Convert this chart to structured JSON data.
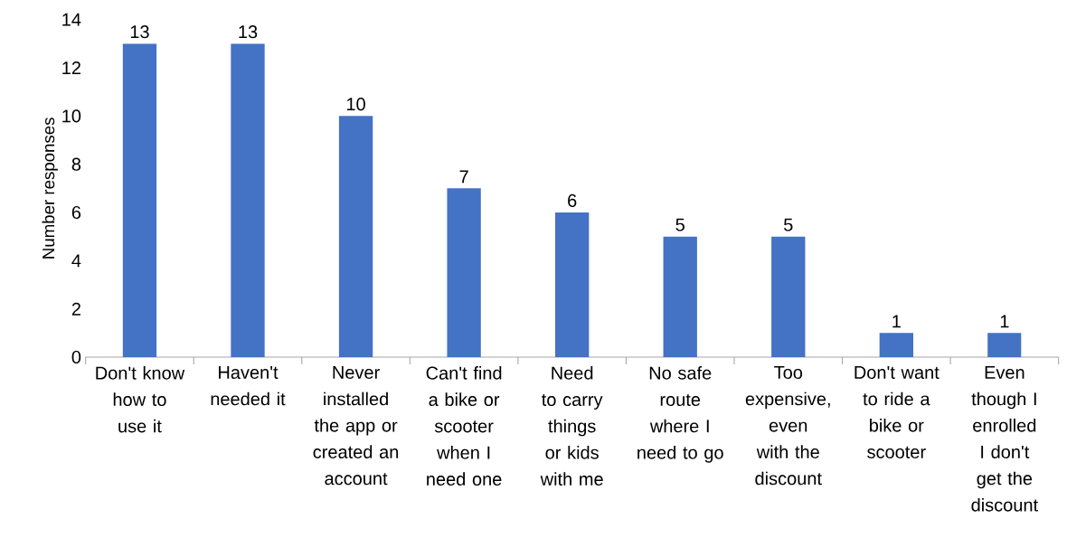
{
  "chart_data": {
    "type": "bar",
    "ylabel": "Number responses",
    "categories": [
      "Don't know how to use it",
      "Haven't needed it",
      "Never installed the app or created an account",
      "Can't find a bike or scooter when I need one",
      "Need to carry things or kids with me",
      "No safe route where I need to go",
      "Too expensive, even with the discount",
      "Don't want to ride a bike or scooter",
      "Even though I enrolled I don't get the discount"
    ],
    "values": [
      13,
      13,
      10,
      7,
      6,
      5,
      5,
      1,
      1
    ],
    "color": "#4472c4",
    "ylim": [
      0,
      14
    ],
    "yticks": [
      0,
      2,
      4,
      6,
      8,
      10,
      12,
      14
    ],
    "data_labels": true
  }
}
